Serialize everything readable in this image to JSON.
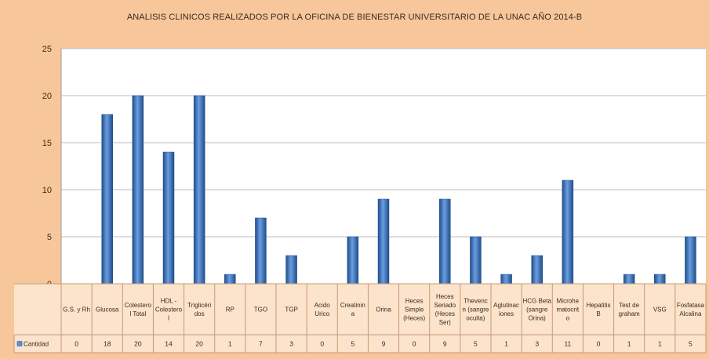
{
  "chart_data": {
    "type": "bar",
    "title": "ANALISIS CLINICOS REALIZADOS POR LA OFICINA DE BIENESTAR UNIVERSITARIO DE LA UNAC  AÑO 2014-B",
    "categories": [
      [
        "G.S. y Rh"
      ],
      [
        "Glucosa"
      ],
      [
        "Colestero",
        "l Total"
      ],
      [
        "HDL -",
        "Colestero",
        "l"
      ],
      [
        "Triglicéri",
        "dos"
      ],
      [
        "RP"
      ],
      [
        "TGO"
      ],
      [
        "TGP"
      ],
      [
        "Acido",
        "Urico"
      ],
      [
        "Creatinin",
        "a"
      ],
      [
        "Orina"
      ],
      [
        "Heces",
        "Simple",
        "(Heces)"
      ],
      [
        "Heces",
        "Seriado",
        "(Heces",
        "Ser)"
      ],
      [
        "Thevenc",
        "n (sangre",
        "oculta)"
      ],
      [
        "Aglutinac",
        "iones"
      ],
      [
        "HCG Beta",
        "(sangre",
        "Orina)"
      ],
      [
        "Microhe",
        "matocrit",
        "o"
      ],
      [
        "Hepatitis",
        "B"
      ],
      [
        "Test de",
        "graham"
      ],
      [
        "VSG"
      ],
      [
        "Fosfatasa",
        "Alcalina"
      ]
    ],
    "series": [
      {
        "name": "Cantidad",
        "values": [
          0,
          18,
          20,
          14,
          20,
          1,
          7,
          3,
          0,
          5,
          9,
          0,
          9,
          5,
          1,
          3,
          11,
          0,
          1,
          1,
          5
        ]
      }
    ],
    "data_labels": [
      "0",
      "18",
      "20",
      "14",
      "20",
      "1",
      "7",
      "3",
      "0",
      "5",
      "9",
      "0",
      "9",
      "5",
      "1",
      "3",
      "11",
      "0",
      "1",
      "1",
      "5"
    ],
    "yticks": [
      "0",
      "5",
      "10",
      "15",
      "20",
      "25"
    ],
    "ylim": [
      0,
      25
    ],
    "grid": true,
    "legend": "data-table-left",
    "colors": {
      "frame": "#f7c79b",
      "plot": "#ffffff",
      "bar_dark": "#1f4e8c",
      "bar_light": "#5b8fd6",
      "grid": "#bcbcbc",
      "table": "#fbe3cc",
      "table_line": "#c79a72"
    }
  }
}
